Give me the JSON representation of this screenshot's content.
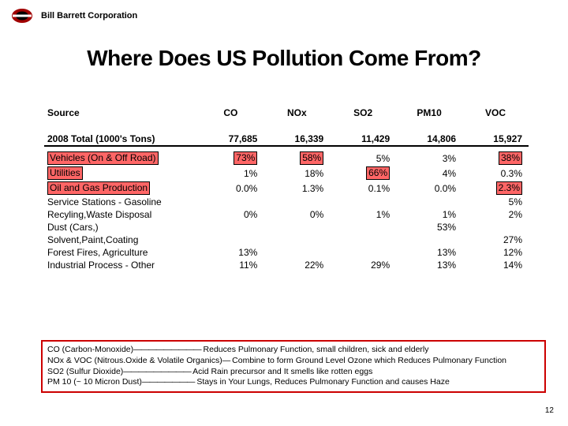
{
  "header": {
    "company": "Bill Barrett Corporation"
  },
  "title": "Where Does US Pollution Come From?",
  "table": {
    "headers": [
      "Source",
      "CO",
      "NOx",
      "SO2",
      "PM10",
      "VOC"
    ],
    "total_label": "2008 Total (1000's Tons)",
    "total": [
      "77,685",
      "16,339",
      "11,429",
      "14,806",
      "15,927"
    ],
    "rows": [
      {
        "label": "Vehicles (On & Off Road)",
        "hl_label": true,
        "cells": [
          "73%",
          "58%",
          "5%",
          "3%",
          "38%"
        ],
        "hl_cells": [
          true,
          true,
          false,
          false,
          true
        ]
      },
      {
        "label": "Utilities",
        "hl_label": true,
        "cells": [
          "1%",
          "18%",
          "66%",
          "4%",
          "0.3%"
        ],
        "hl_cells": [
          false,
          false,
          true,
          false,
          false
        ]
      },
      {
        "label": "Oil and Gas Production",
        "hl_label": true,
        "cells": [
          "0.0%",
          "1.3%",
          "0.1%",
          "0.0%",
          "2.3%"
        ],
        "hl_cells": [
          false,
          false,
          false,
          false,
          true
        ]
      },
      {
        "label": "Service Stations - Gasoline",
        "hl_label": false,
        "cells": [
          "",
          "",
          "",
          "",
          "5%"
        ],
        "hl_cells": [
          false,
          false,
          false,
          false,
          false
        ]
      },
      {
        "label": "Recyling,Waste Disposal",
        "hl_label": false,
        "cells": [
          "0%",
          "0%",
          "1%",
          "1%",
          "2%"
        ],
        "hl_cells": [
          false,
          false,
          false,
          false,
          false
        ]
      },
      {
        "label": "Dust (Cars,)",
        "hl_label": false,
        "cells": [
          "",
          "",
          "",
          "53%",
          ""
        ],
        "hl_cells": [
          false,
          false,
          false,
          false,
          false
        ]
      },
      {
        "label": "Solvent,Paint,Coating",
        "hl_label": false,
        "cells": [
          "",
          "",
          "",
          "",
          "27%"
        ],
        "hl_cells": [
          false,
          false,
          false,
          false,
          false
        ]
      },
      {
        "label": "Forest Fires, Agriculture",
        "hl_label": false,
        "cells": [
          "13%",
          "",
          "",
          "13%",
          "12%"
        ],
        "hl_cells": [
          false,
          false,
          false,
          false,
          false
        ]
      },
      {
        "label": "Industrial Process - Other",
        "hl_label": false,
        "cells": [
          "11%",
          "22%",
          "29%",
          "13%",
          "14%"
        ],
        "hl_cells": [
          false,
          false,
          false,
          false,
          false
        ]
      }
    ]
  },
  "definitions": [
    {
      "lead": "CO (Carbon-Monoxide) ",
      "text": " Reduces Pulmonary Function, small children, sick and elderly"
    },
    {
      "lead": "NOx & VOC (Nitrous.Oxide & Volatile Organics) ",
      "text": " Combine to form Ground Level Ozone which Reduces Pulmonary Function"
    },
    {
      "lead": "SO2 (Sulfur Dioxide) ",
      "text": " Acid Rain precursor and It smells like rotten eggs"
    },
    {
      "lead": "PM 10 (~ 10 Micron Dust) ",
      "text": " Stays in Your Lungs, Reduces Pulmonary Function and causes Haze"
    }
  ],
  "page": "12",
  "colors": {
    "highlight_bg": "#ff6666",
    "box_border": "#cc0000"
  }
}
